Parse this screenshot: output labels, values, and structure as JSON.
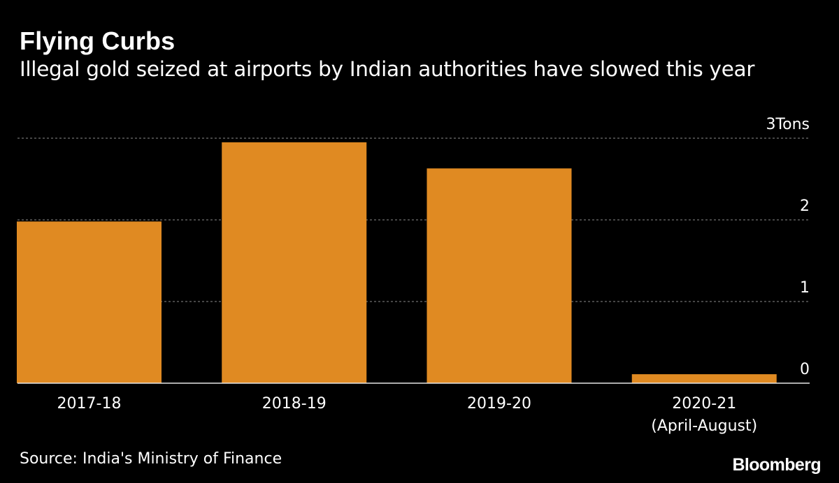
{
  "header": {
    "title": "Flying Curbs",
    "subtitle": "Illegal gold seized at airports by Indian authorities have slowed this year"
  },
  "footer": {
    "source": "Source: India's Ministry of Finance",
    "brand": "Bloomberg"
  },
  "colors": {
    "background": "#000000",
    "bar": "#e08a22",
    "text": "#ffffff",
    "grid": "#8c8c8c"
  },
  "chart_data": {
    "type": "bar",
    "categories": [
      [
        "2017-18"
      ],
      [
        "2018-19"
      ],
      [
        "2019-20"
      ],
      [
        "2020-21",
        "(April-August)"
      ]
    ],
    "values": [
      1.98,
      2.95,
      2.63,
      0.11
    ],
    "ylim": [
      0,
      3
    ],
    "yticks": [
      {
        "value": 0,
        "label": "0"
      },
      {
        "value": 1,
        "label": "1"
      },
      {
        "value": 2,
        "label": "2"
      },
      {
        "value": 3,
        "label": "3"
      }
    ],
    "yunit": "Tons",
    "grid": true,
    "yaxis_side": "right"
  }
}
